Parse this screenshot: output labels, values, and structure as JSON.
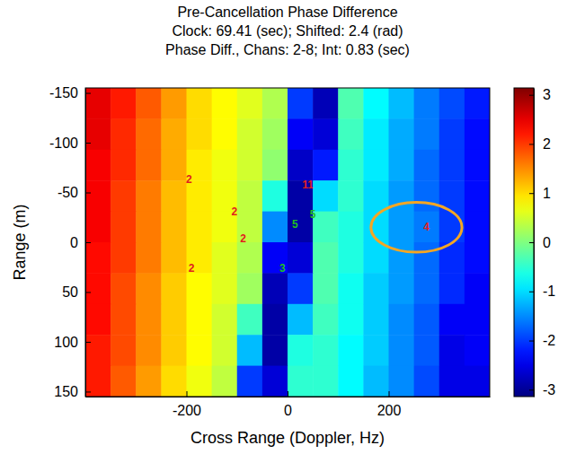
{
  "chart_data": {
    "type": "heatmap",
    "title": "Pre-Cancellation Phase Difference",
    "subtitle": [
      "Clock: 69.41 (sec); Shifted: 2.4 (rad)",
      "Phase Diff., Chans: 2-8; Int: 0.83 (sec)"
    ],
    "x_label": "Cross Range (Doppler, Hz)",
    "y_label": "Range (m)",
    "xlim": [
      -400,
      400
    ],
    "ylim": [
      -155,
      155
    ],
    "xticks": [
      -200,
      0,
      200
    ],
    "yticks": [
      -150,
      -100,
      -50,
      0,
      50,
      100,
      150
    ],
    "x_edges": [
      -400,
      -350,
      -300,
      -250,
      -200,
      -150,
      -100,
      -50,
      0,
      50,
      100,
      150,
      200,
      250,
      300,
      350,
      400
    ],
    "y_edges": [
      -155,
      -124,
      -93,
      -62,
      -31,
      0,
      31,
      62,
      93,
      124,
      155
    ],
    "cells": [
      [
        2.5,
        2.2,
        1.8,
        1.4,
        1.0,
        0.8,
        0.6,
        0.3,
        -2.0,
        -2.8,
        -0.3,
        -0.8,
        -1.2,
        -1.6,
        -1.9,
        -2.2
      ],
      [
        2.5,
        2.1,
        1.7,
        1.3,
        1.0,
        0.8,
        0.5,
        0.2,
        -2.4,
        -2.6,
        -0.4,
        -0.9,
        -1.3,
        -1.6,
        -2.0,
        -2.3
      ],
      [
        2.4,
        2.1,
        1.7,
        1.3,
        0.9,
        0.7,
        0.5,
        0.1,
        -2.7,
        -2.2,
        -0.5,
        -0.9,
        -1.3,
        -1.7,
        -2.0,
        -2.3
      ],
      [
        2.4,
        2.0,
        1.6,
        1.2,
        0.9,
        0.7,
        0.4,
        -0.6,
        -2.9,
        -1.0,
        -0.5,
        -1.0,
        -1.4,
        -1.7,
        -2.0,
        -2.3
      ],
      [
        2.4,
        2.0,
        1.6,
        1.2,
        0.9,
        0.7,
        0.4,
        -1.5,
        -2.9,
        -0.4,
        -0.6,
        -1.0,
        -1.4,
        -1.6,
        -2.0,
        -2.3
      ],
      [
        2.3,
        2.0,
        1.6,
        1.2,
        0.9,
        0.6,
        0.3,
        -2.4,
        -2.6,
        -0.3,
        -0.6,
        -1.0,
        -1.4,
        -1.7,
        -2.1,
        -2.3
      ],
      [
        2.3,
        1.9,
        1.5,
        1.1,
        0.8,
        0.6,
        0.2,
        -2.8,
        -2.0,
        -0.3,
        -0.7,
        -1.1,
        -1.4,
        -1.7,
        -2.1,
        -2.4
      ],
      [
        2.3,
        1.9,
        1.5,
        1.1,
        0.8,
        0.5,
        -0.4,
        -2.9,
        -1.2,
        -0.4,
        -0.7,
        -1.1,
        -1.5,
        -1.8,
        -2.4,
        -2.4
      ],
      [
        2.2,
        1.9,
        1.5,
        1.1,
        0.8,
        0.5,
        -1.2,
        -2.9,
        -0.6,
        -0.5,
        -0.8,
        -1.1,
        -1.5,
        -1.8,
        -2.5,
        -2.4
      ],
      [
        2.2,
        1.8,
        1.4,
        1.0,
        0.7,
        0.4,
        -2.0,
        -2.6,
        -0.5,
        -0.5,
        -0.8,
        -1.2,
        -1.5,
        -1.9,
        -2.5,
        -2.5
      ]
    ],
    "colorbar": {
      "range": [
        -3.14,
        3.14
      ],
      "ticks": [
        -3,
        -2,
        -1,
        0,
        1,
        2,
        3
      ]
    },
    "annotations": [
      {
        "text": "2",
        "x": -195,
        "y": -62,
        "color": "#e02020"
      },
      {
        "text": "2",
        "x": -105,
        "y": -30,
        "color": "#e02020"
      },
      {
        "text": "2",
        "x": -88,
        "y": -3,
        "color": "#e02020"
      },
      {
        "text": "2",
        "x": -190,
        "y": 27,
        "color": "#e02020"
      },
      {
        "text": "11",
        "x": 40,
        "y": -57,
        "color": "#e02020"
      },
      {
        "text": "5",
        "x": 15,
        "y": -17,
        "color": "#20c020"
      },
      {
        "text": "5",
        "x": 50,
        "y": -27,
        "color": "#20c020"
      },
      {
        "text": "3",
        "x": -10,
        "y": 27,
        "color": "#20c020"
      },
      {
        "text": "4",
        "x": 275,
        "y": -15,
        "color": "#e02020"
      }
    ],
    "highlight": {
      "x": [
        165,
        345
      ],
      "y": [
        -40,
        10
      ],
      "color": "#f5a623"
    }
  }
}
